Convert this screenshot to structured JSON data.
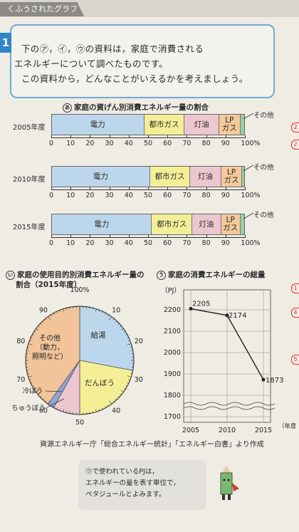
{
  "header": {
    "tab_label": "くふうされたグラフ"
  },
  "question": {
    "number": "1",
    "lines": [
      "下の㋐，㋑，㋒の資料は，家庭で消費される",
      "エネルギーについて調べたものです。",
      "この資料から，どんなことがいえるかを考えましょう。"
    ]
  },
  "chart_a": {
    "mark": "あ",
    "title": "家庭の資げん別消費エネルギー量の割合",
    "sono_ta": "その他",
    "rows": [
      {
        "year": "2005年度",
        "segments": [
          {
            "label": "電力",
            "value": 48,
            "color": "#bcd6ec"
          },
          {
            "label": "都市ガス",
            "value": 21,
            "color": "#f4ef97"
          },
          {
            "label": "灯油",
            "value": 18,
            "color": "#ecc7cf"
          },
          {
            "label": "LPガス",
            "value": 11,
            "color": "#f4c99b"
          },
          {
            "label": "その他",
            "value": 2,
            "color": "#9ad0a6"
          }
        ]
      },
      {
        "year": "2010年度",
        "segments": [
          {
            "label": "電力",
            "value": 51,
            "color": "#bcd6ec"
          },
          {
            "label": "都市ガス",
            "value": 21,
            "color": "#f4ef97"
          },
          {
            "label": "灯油",
            "value": 16,
            "color": "#ecc7cf"
          },
          {
            "label": "LPガス",
            "value": 11,
            "color": "#f4c99b"
          },
          {
            "label": "その他",
            "value": 1,
            "color": "#9ad0a6"
          }
        ]
      },
      {
        "year": "2015年度",
        "segments": [
          {
            "label": "電力",
            "value": 52,
            "color": "#bcd6ec"
          },
          {
            "label": "都市ガス",
            "value": 21,
            "color": "#f4ef97"
          },
          {
            "label": "灯油",
            "value": 15,
            "color": "#ecc7cf"
          },
          {
            "label": "LPガス",
            "value": 10,
            "color": "#f4c99b"
          },
          {
            "label": "その他",
            "value": 2,
            "color": "#9ad0a6"
          }
        ]
      }
    ],
    "ticks": [
      "0",
      "10",
      "20",
      "30",
      "40",
      "50",
      "60",
      "70",
      "80",
      "90",
      "100%"
    ]
  },
  "chart_b": {
    "mark": "い",
    "title_line1": "家庭の使用目的別消費エネルギー量の",
    "title_line2": "割合（2015年度）",
    "top_label": "100%",
    "tick_labels": [
      "10",
      "20",
      "30",
      "40",
      "50",
      "60",
      "70",
      "80",
      "90"
    ],
    "slices": [
      {
        "label": "給湯",
        "value": 28,
        "color": "#bcd6ec"
      },
      {
        "label": "だんぼう",
        "value": 22,
        "color": "#f4ef97"
      },
      {
        "label": "ちゅうぼう",
        "value": 8,
        "color": "#ecc7cf"
      },
      {
        "label": "冷ぼう",
        "value": 2,
        "color": "#8fa6d8"
      },
      {
        "label": "その他（動力，照明など）",
        "value": 40,
        "color": "#f2c49a"
      }
    ],
    "other_label": [
      "その他",
      "（動力，",
      "照明など）"
    ]
  },
  "chart_c": {
    "mark": "う",
    "title": "家庭の消費エネルギーの総量",
    "unit": "（PJ）",
    "xunit": "（年度）",
    "y_ticks": [
      "2200",
      "2100",
      "2000",
      "1900",
      "1800",
      "1700",
      "1600"
    ],
    "x": [
      "2005",
      "2010",
      "2015"
    ],
    "values": [
      2205,
      2174,
      1873
    ],
    "labels": [
      "2205",
      "2174",
      "1873"
    ]
  },
  "chart_data": [
    {
      "type": "bar",
      "title": "家庭の資げん別消費エネルギー量の割合",
      "categories": [
        "2005年度",
        "2010年度",
        "2015年度"
      ],
      "series": [
        {
          "name": "電力",
          "values": [
            48,
            51,
            52
          ]
        },
        {
          "name": "都市ガス",
          "values": [
            21,
            21,
            21
          ]
        },
        {
          "name": "灯油",
          "values": [
            18,
            16,
            15
          ]
        },
        {
          "name": "LPガス",
          "values": [
            11,
            11,
            10
          ]
        },
        {
          "name": "その他",
          "values": [
            2,
            1,
            2
          ]
        }
      ],
      "xlim": [
        0,
        100
      ]
    },
    {
      "type": "pie",
      "title": "家庭の使用目的別消費エネルギー量の割合（2015年度）",
      "categories": [
        "給湯",
        "だんぼう",
        "ちゅうぼう",
        "冷ぼう",
        "その他（動力，照明など）"
      ],
      "values": [
        28,
        22,
        8,
        2,
        40
      ]
    },
    {
      "type": "line",
      "title": "家庭の消費エネルギーの総量",
      "x": [
        "2005",
        "2010",
        "2015"
      ],
      "values": [
        2205,
        2174,
        1873
      ],
      "ylabel": "（PJ）",
      "xlabel": "（年度）"
    }
  ],
  "source": "資源エネルギー庁「総合エネルギー統計」「エネルギー白書」より作成",
  "note": {
    "lines": [
      "㋒で使われているPJは，",
      "エネルギーの量を表す単位で，",
      "ペタジュールとよみます。"
    ]
  },
  "side_marks": [
    "2",
    "2",
    "1",
    "4",
    "5"
  ]
}
